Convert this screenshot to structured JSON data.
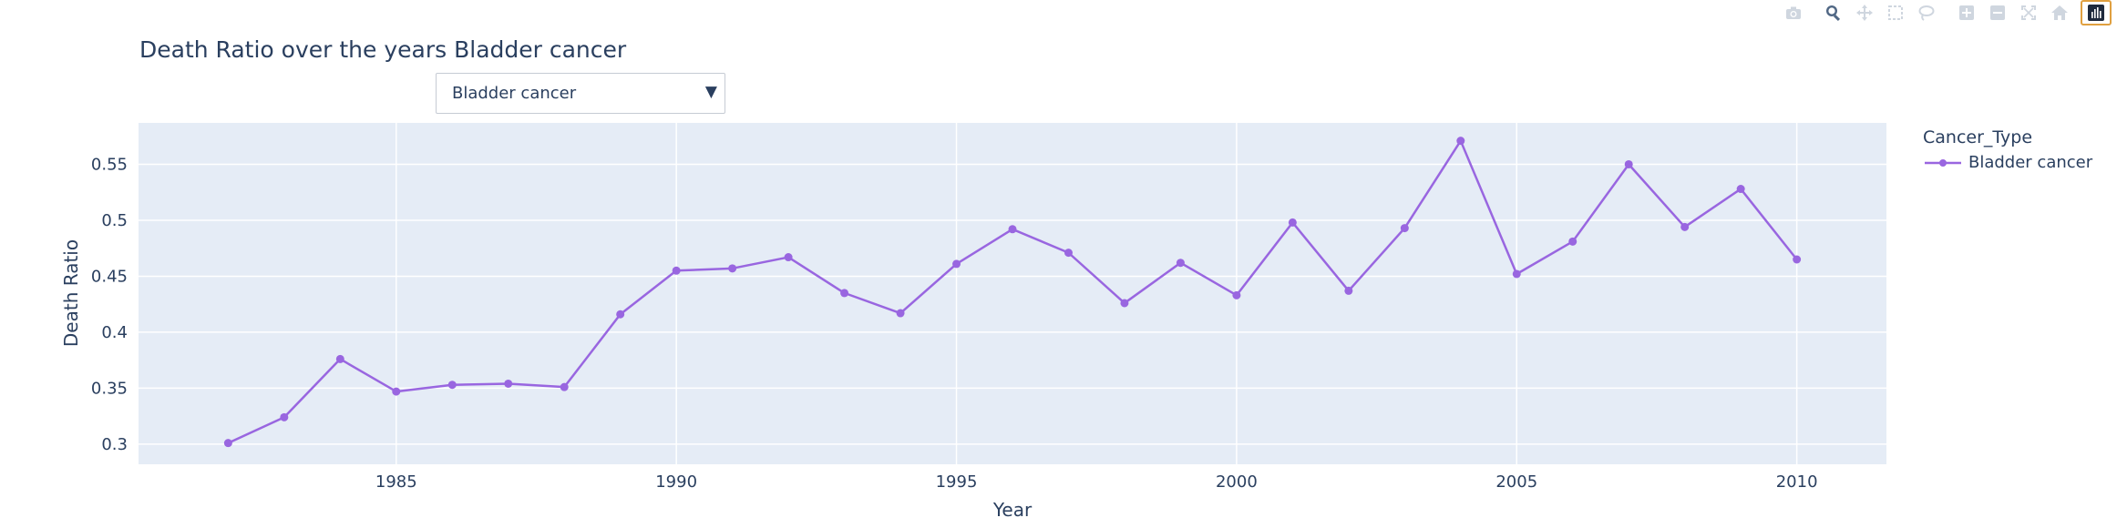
{
  "toolbar": {
    "buttons": [
      {
        "name": "camera-icon"
      },
      {
        "name": "zoom-icon"
      },
      {
        "name": "pan-icon"
      },
      {
        "name": "box-select-icon"
      },
      {
        "name": "lasso-select-icon"
      },
      {
        "name": "zoom-in-icon"
      },
      {
        "name": "zoom-out-icon"
      },
      {
        "name": "autoscale-icon"
      },
      {
        "name": "reset-axes-icon"
      },
      {
        "name": "plotly-logo-icon"
      }
    ]
  },
  "dropdown": {
    "selected": "Bladder cancer"
  },
  "legend": {
    "title": "Cancer_Type",
    "items": [
      "Bladder cancer"
    ]
  },
  "colors": {
    "series": "#9966e0",
    "plot_bg": "#e5ecf6",
    "grid": "#ffffff"
  },
  "chart_data": {
    "type": "line",
    "title": "Death Ratio over the years Bladder cancer",
    "xlabel": "Year",
    "ylabel": "Death Ratio",
    "xlim": [
      1980.4,
      2011.6
    ],
    "ylim": [
      0.282,
      0.587
    ],
    "x_ticks": [
      1985,
      1990,
      1995,
      2000,
      2005,
      2010
    ],
    "y_ticks": [
      0.3,
      0.35,
      0.4,
      0.45,
      0.5,
      0.55
    ],
    "y_tick_labels": [
      "0.3",
      "0.35",
      "0.4",
      "0.45",
      "0.5",
      "0.55"
    ],
    "grid": true,
    "legend_position": "right",
    "series": [
      {
        "name": "Bladder cancer",
        "x": [
          1982,
          1983,
          1984,
          1985,
          1986,
          1987,
          1988,
          1989,
          1990,
          1991,
          1992,
          1993,
          1994,
          1995,
          1996,
          1997,
          1998,
          1999,
          2000,
          2001,
          2002,
          2003,
          2004,
          2005,
          2006,
          2007,
          2008,
          2009,
          2010
        ],
        "values": [
          0.301,
          0.324,
          0.376,
          0.347,
          0.353,
          0.354,
          0.351,
          0.416,
          0.455,
          0.457,
          0.467,
          0.435,
          0.417,
          0.461,
          0.492,
          0.471,
          0.426,
          0.462,
          0.433,
          0.498,
          0.437,
          0.493,
          0.571,
          0.452,
          0.481,
          0.55,
          0.494,
          0.528,
          0.465
        ]
      }
    ]
  }
}
